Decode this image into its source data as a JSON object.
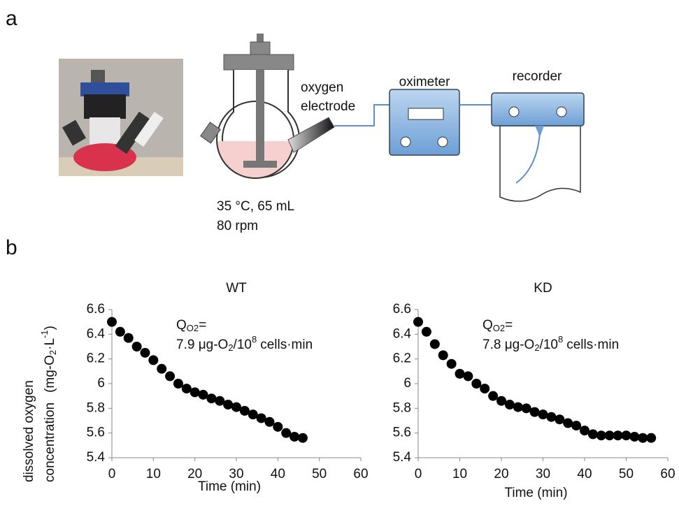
{
  "panel_labels": [
    "a",
    "b"
  ],
  "diagram": {
    "electrode_label": [
      "oxygen",
      "electrode"
    ],
    "oximeter": "oximeter",
    "recorder": "recorder",
    "conditions": [
      "35 °C, 65 mL",
      "80 rpm"
    ]
  },
  "chart_data": [
    {
      "type": "scatter",
      "title": "WT",
      "xlabel": "Time (min)",
      "ylabel": {
        "lines": [
          "dissolved oxygen",
          "concentration"
        ],
        "unit": [
          "(mg-O",
          "2",
          "·L",
          "-1",
          ")"
        ]
      },
      "annotation": {
        "line1": [
          "Q",
          "O2",
          "="
        ],
        "line2": [
          "7.9 μg-O",
          "2",
          "/10",
          "8",
          "cells·min"
        ]
      },
      "x": [
        0,
        2,
        4,
        6,
        8,
        10,
        12,
        14,
        16,
        18,
        20,
        22,
        24,
        26,
        28,
        30,
        32,
        34,
        36,
        38,
        40,
        42,
        44,
        46
      ],
      "values": [
        6.5,
        6.42,
        6.37,
        6.3,
        6.25,
        6.19,
        6.12,
        6.06,
        6.0,
        5.96,
        5.93,
        5.91,
        5.88,
        5.86,
        5.83,
        5.81,
        5.78,
        5.75,
        5.72,
        5.69,
        5.65,
        5.6,
        5.57,
        5.56
      ],
      "color": "#000000",
      "xlim": [
        0,
        60
      ],
      "xticks": [
        0,
        10,
        20,
        30,
        40,
        50,
        60
      ],
      "ylim": [
        5.4,
        6.6
      ],
      "yticks": [
        5.4,
        5.6,
        5.8,
        6,
        6.2,
        6.4,
        6.6
      ],
      "grid": false
    },
    {
      "type": "scatter",
      "title": "KD",
      "xlabel": "Time (min)",
      "annotation": {
        "line1": [
          "Q",
          "O2",
          "="
        ],
        "line2": [
          "7.8 μg-O",
          "2",
          "/10",
          "8",
          "cells·min"
        ]
      },
      "x": [
        0,
        2,
        4,
        6,
        8,
        10,
        12,
        14,
        16,
        18,
        20,
        22,
        24,
        26,
        28,
        30,
        32,
        34,
        36,
        38,
        40,
        42,
        44,
        46,
        48,
        50,
        52,
        54,
        56
      ],
      "values": [
        6.5,
        6.42,
        6.32,
        6.23,
        6.16,
        6.08,
        6.06,
        6.0,
        5.96,
        5.9,
        5.86,
        5.83,
        5.81,
        5.8,
        5.77,
        5.75,
        5.73,
        5.71,
        5.68,
        5.66,
        5.62,
        5.59,
        5.58,
        5.58,
        5.58,
        5.58,
        5.57,
        5.56,
        5.56
      ],
      "color": "#000000",
      "xlim": [
        0,
        60
      ],
      "xticks": [
        0,
        10,
        20,
        30,
        40,
        50,
        60
      ],
      "ylim": [
        5.4,
        6.6
      ],
      "yticks": [
        5.4,
        5.6,
        5.8,
        6,
        6.2,
        6.4,
        6.6
      ],
      "grid": false
    }
  ]
}
